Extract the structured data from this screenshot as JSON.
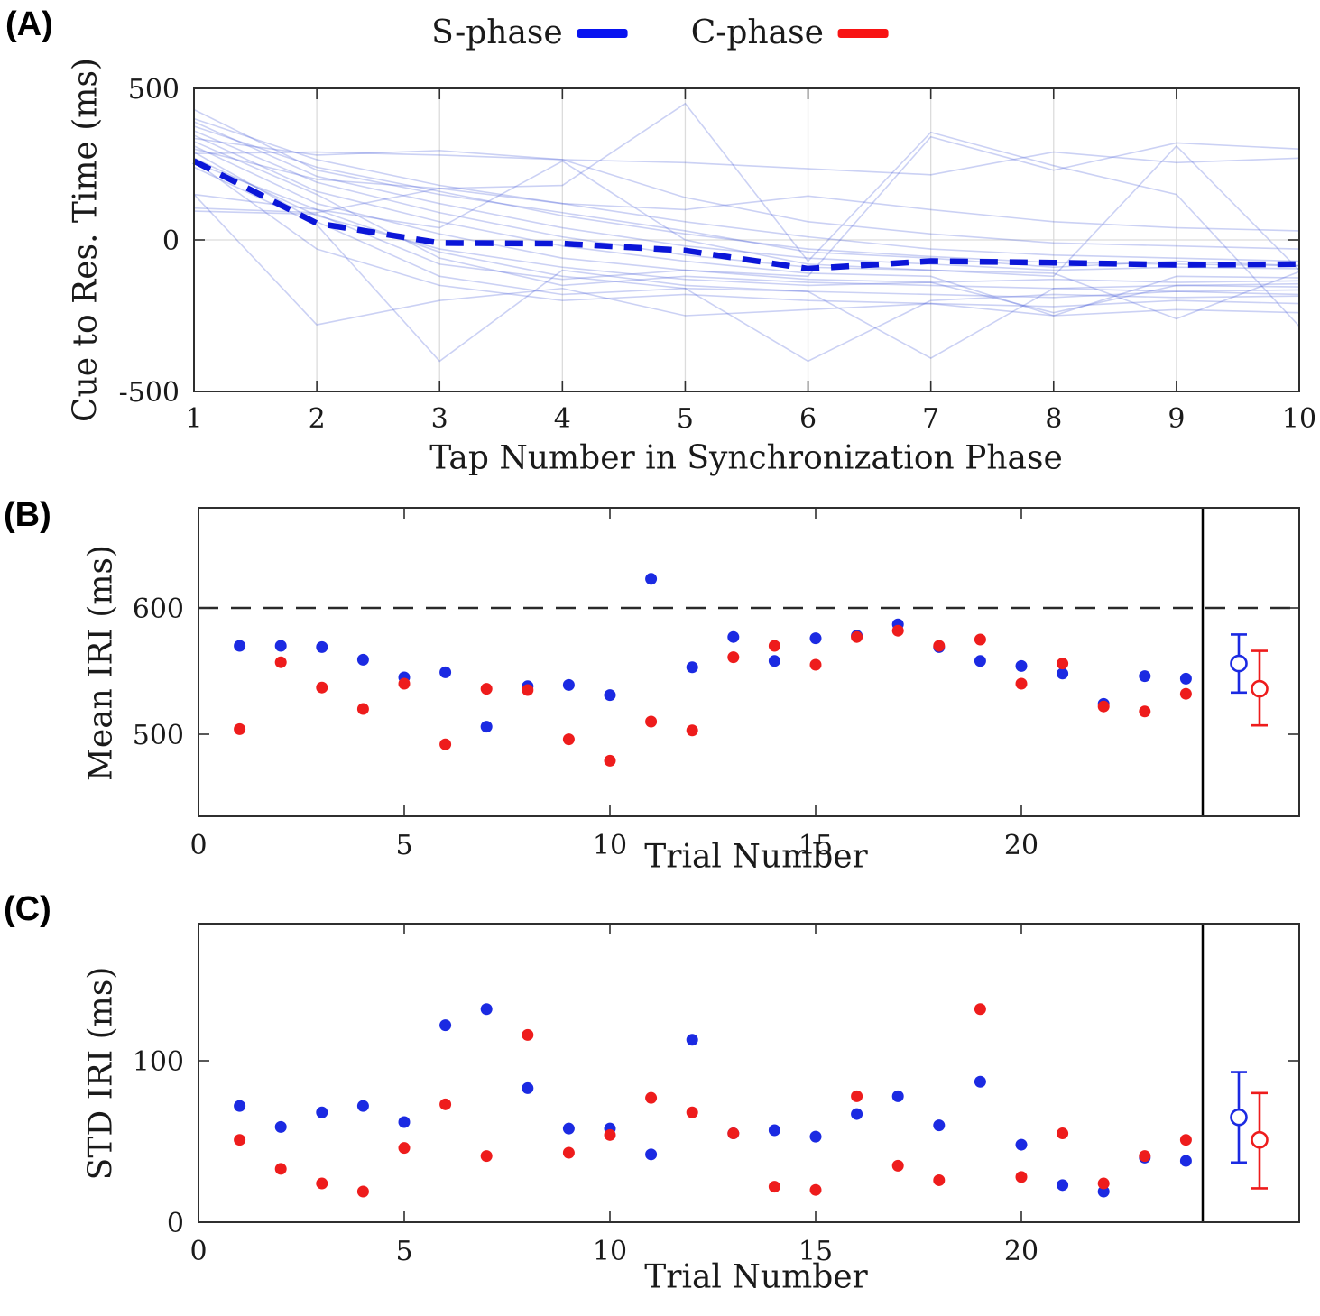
{
  "panels": {
    "a": {
      "label": "(A)",
      "xlabel": "Tap Number in Synchronization Phase",
      "ylabel": "Cue to Res. Time (ms)"
    },
    "b": {
      "label": "(B)",
      "xlabel": "Trial Number",
      "ylabel": "Mean IRI (ms)"
    },
    "c": {
      "label": "(C)",
      "xlabel": "Trial Number",
      "ylabel": "STD IRI (ms)"
    }
  },
  "legend": {
    "items": [
      {
        "label": "S-phase",
        "color": "#0813f0"
      },
      {
        "label": "C-phase",
        "color": "#f81313"
      }
    ]
  },
  "colors": {
    "s_dot": "#1b2ae2",
    "c_dot": "#ee1c1c",
    "mean_line": "#0b16d8",
    "trial_line": "#4056d8",
    "grid": "#dcdcdc",
    "axis": "#2f2f2f",
    "ref_line": "#2a2a2a"
  },
  "chart_data": [
    {
      "panel": "A",
      "type": "line",
      "xlabel": "Tap Number in Synchronization Phase",
      "ylabel": "Cue to Res. Time (ms)",
      "x": [
        1,
        2,
        3,
        4,
        5,
        6,
        7,
        8,
        9,
        10
      ],
      "xticks": [
        1,
        2,
        3,
        4,
        5,
        6,
        7,
        8,
        9,
        10
      ],
      "yticks": [
        500,
        0,
        -500
      ],
      "xlim": [
        1,
        10
      ],
      "ylim": [
        -500,
        500
      ],
      "grid": "vertical-plus-zero-line",
      "legend_position": "top-center-outside",
      "mean_series": {
        "name": "S-phase mean",
        "style": "dashed-bold",
        "values": [
          260,
          55,
          -10,
          -12,
          -35,
          -95,
          -70,
          -75,
          -82,
          -80
        ]
      },
      "individual_trials": [
        [
          430,
          230,
          150,
          90,
          30,
          -40,
          -60,
          -90,
          -70,
          -85
        ],
        [
          400,
          265,
          180,
          120,
          60,
          10,
          -30,
          -50,
          -60,
          -70
        ],
        [
          390,
          210,
          120,
          40,
          -20,
          -60,
          -80,
          -100,
          -90,
          -95
        ],
        [
          375,
          240,
          160,
          80,
          20,
          -30,
          -55,
          -75,
          -80,
          -85
        ],
        [
          360,
          190,
          90,
          10,
          -50,
          -90,
          -100,
          -110,
          -260,
          -105
        ],
        [
          345,
          160,
          60,
          -20,
          -70,
          -110,
          -120,
          -250,
          -120,
          -125
        ],
        [
          335,
          280,
          295,
          265,
          140,
          60,
          20,
          -10,
          -20,
          -30
        ],
        [
          325,
          150,
          -60,
          -150,
          -120,
          -140,
          -150,
          -160,
          -150,
          -155
        ],
        [
          310,
          120,
          20,
          -60,
          -100,
          -130,
          -140,
          -240,
          -150,
          -145
        ],
        [
          300,
          200,
          170,
          120,
          100,
          145,
          100,
          60,
          40,
          30
        ],
        [
          290,
          60,
          -120,
          -180,
          -160,
          -170,
          -180,
          -190,
          -170,
          -180
        ],
        [
          285,
          290,
          280,
          265,
          255,
          235,
          215,
          290,
          255,
          270
        ],
        [
          270,
          80,
          -30,
          -90,
          -130,
          -150,
          -140,
          -130,
          -140,
          -135
        ],
        [
          260,
          -30,
          -150,
          -200,
          -180,
          -200,
          -210,
          -220,
          -200,
          -210
        ],
        [
          255,
          100,
          -40,
          -120,
          -160,
          -400,
          -200,
          -180,
          -190,
          -185
        ],
        [
          240,
          50,
          -400,
          -100,
          -150,
          -170,
          -390,
          -160,
          -170,
          -165
        ],
        [
          150,
          100,
          40,
          260,
          0,
          -80,
          -100,
          -120,
          310,
          -100
        ],
        [
          105,
          90,
          170,
          180,
          450,
          -70,
          355,
          245,
          150,
          -285
        ],
        [
          95,
          85,
          -80,
          -130,
          -100,
          -120,
          340,
          230,
          320,
          300
        ],
        [
          150,
          -280,
          -200,
          -160,
          -250,
          -230,
          -210,
          -250,
          -230,
          -240
        ]
      ]
    },
    {
      "panel": "B",
      "type": "scatter",
      "xlabel": "Trial Number",
      "ylabel": "Mean IRI (ms)",
      "xticks": [
        0,
        5,
        10,
        15,
        20
      ],
      "yticks": [
        500,
        600
      ],
      "xlim": [
        0,
        24.5
      ],
      "ylim": [
        435,
        680
      ],
      "reference_line_y": 600,
      "trials": [
        1,
        2,
        3,
        4,
        5,
        6,
        7,
        8,
        9,
        10,
        11,
        12,
        13,
        14,
        15,
        16,
        17,
        18,
        19,
        20,
        21,
        22,
        23,
        24
      ],
      "series": [
        {
          "name": "S-phase",
          "values": [
            570,
            570,
            569,
            559,
            545,
            549,
            506,
            538,
            539,
            531,
            623,
            553,
            577,
            558,
            576,
            578,
            587,
            569,
            558,
            554,
            548,
            524,
            546,
            544
          ]
        },
        {
          "name": "C-phase",
          "values": [
            504,
            557,
            537,
            520,
            540,
            492,
            536,
            535,
            496,
            479,
            510,
            503,
            561,
            570,
            555,
            577,
            582,
            570,
            575,
            540,
            556,
            522,
            518,
            532
          ]
        }
      ],
      "summary": [
        {
          "name": "S-phase",
          "mean": 556,
          "upper": 579,
          "lower": 533
        },
        {
          "name": "C-phase",
          "mean": 536,
          "upper": 566,
          "lower": 507
        }
      ]
    },
    {
      "panel": "C",
      "type": "scatter",
      "xlabel": "Trial Number",
      "ylabel": "STD IRI (ms)",
      "xticks": [
        0,
        5,
        10,
        15,
        20
      ],
      "yticks": [
        0,
        100
      ],
      "xlim": [
        0,
        24.5
      ],
      "ylim": [
        0,
        185
      ],
      "trials": [
        1,
        2,
        3,
        4,
        5,
        6,
        7,
        8,
        9,
        10,
        11,
        12,
        13,
        14,
        15,
        16,
        17,
        18,
        19,
        20,
        21,
        22,
        23,
        24
      ],
      "series": [
        {
          "name": "S-phase",
          "values": [
            72,
            59,
            68,
            72,
            62,
            122,
            132,
            83,
            58,
            58,
            42,
            113,
            55,
            57,
            53,
            67,
            78,
            60,
            87,
            48,
            23,
            19,
            40,
            38
          ]
        },
        {
          "name": "C-phase",
          "values": [
            51,
            33,
            24,
            19,
            46,
            73,
            41,
            116,
            43,
            54,
            77,
            68,
            55,
            22,
            20,
            78,
            35,
            26,
            132,
            28,
            55,
            24,
            41,
            51
          ]
        }
      ],
      "summary": [
        {
          "name": "S-phase",
          "mean": 65,
          "upper": 93,
          "lower": 37
        },
        {
          "name": "C-phase",
          "mean": 51,
          "upper": 80,
          "lower": 21
        }
      ]
    }
  ]
}
